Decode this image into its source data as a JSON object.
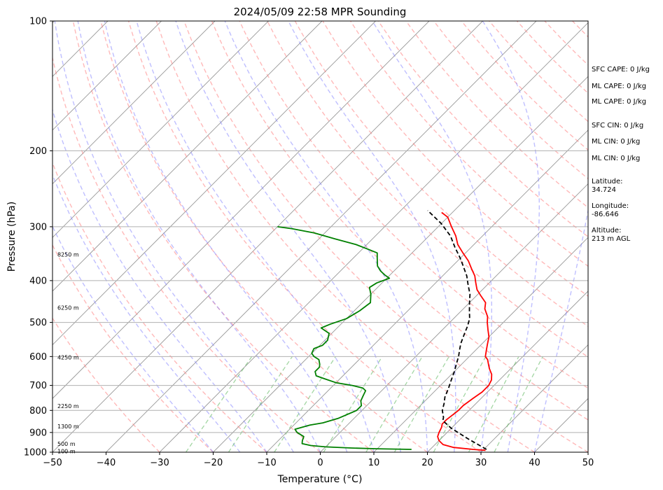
{
  "chart_data": {
    "type": "line",
    "title": "2024/05/09 22:58 MPR Sounding",
    "xlabel": "Temperature (°C)",
    "ylabel": "Pressure (hPa)",
    "xlim": [
      -50,
      50
    ],
    "ylim": [
      1000,
      100
    ],
    "y_scale": "log",
    "x_ticks": [
      "−50",
      "−40",
      "−30",
      "−20",
      "−10",
      "0",
      "10",
      "20",
      "30",
      "40",
      "50"
    ],
    "y_ticks": [
      "100",
      "200",
      "300",
      "400",
      "500",
      "600",
      "700",
      "800",
      "900",
      "1000"
    ],
    "grid": true,
    "series": [
      {
        "color": "#ff0000",
        "points": [
          [
            30.5,
            990
          ],
          [
            28,
            985
          ],
          [
            24,
            975
          ],
          [
            21.5,
            960
          ],
          [
            20,
            940
          ],
          [
            19,
            920
          ],
          [
            18.5,
            900
          ],
          [
            18,
            875
          ],
          [
            17.5,
            860
          ],
          [
            17.5,
            840
          ],
          [
            18,
            800
          ],
          [
            18,
            780
          ],
          [
            18.5,
            750
          ],
          [
            19,
            725
          ],
          [
            19,
            700
          ],
          [
            18.5,
            680
          ],
          [
            17.5,
            660
          ],
          [
            16,
            640
          ],
          [
            15,
            625
          ],
          [
            14,
            610
          ],
          [
            13,
            600
          ],
          [
            12,
            580
          ],
          [
            11,
            560
          ],
          [
            10,
            540
          ],
          [
            8.5,
            520
          ],
          [
            7,
            500
          ],
          [
            6,
            485
          ],
          [
            4,
            465
          ],
          [
            3,
            450
          ],
          [
            1,
            435
          ],
          [
            -1,
            420
          ],
          [
            -2.5,
            405
          ],
          [
            -4,
            390
          ],
          [
            -6,
            375
          ],
          [
            -8,
            360
          ],
          [
            -10.5,
            345
          ],
          [
            -13,
            330
          ],
          [
            -15,
            315
          ],
          [
            -17.5,
            300
          ],
          [
            -20,
            285
          ],
          [
            -22,
            278
          ]
        ]
      },
      {
        "color": "#000000",
        "points": [
          [
            30.5,
            985
          ],
          [
            25,
            930
          ],
          [
            20,
            880
          ],
          [
            17,
            845
          ],
          [
            16.5,
            830
          ],
          [
            16,
            820
          ],
          [
            15,
            800
          ],
          [
            14,
            770
          ],
          [
            13,
            745
          ],
          [
            12,
            710
          ],
          [
            11,
            680
          ],
          [
            10,
            650
          ],
          [
            9,
            625
          ],
          [
            8,
            600
          ],
          [
            7,
            580
          ],
          [
            6,
            560
          ],
          [
            5,
            535
          ],
          [
            4,
            510
          ],
          [
            3,
            490
          ],
          [
            1.5,
            470
          ],
          [
            0,
            450
          ],
          [
            -1.5,
            430
          ],
          [
            -3.5,
            410
          ],
          [
            -5.5,
            390
          ],
          [
            -8,
            370
          ],
          [
            -10,
            355
          ],
          [
            -13,
            335
          ],
          [
            -16,
            315
          ],
          [
            -20,
            295
          ],
          [
            -25,
            275
          ]
        ]
      },
      {
        "color": "#008000",
        "points": [
          [
            16.5,
            985
          ],
          [
            10,
            982
          ],
          [
            5,
            978
          ],
          [
            0,
            972
          ],
          [
            -3,
            965
          ],
          [
            -5,
            955
          ],
          [
            -5.5,
            940
          ],
          [
            -6,
            920
          ],
          [
            -8,
            900
          ],
          [
            -9,
            885
          ],
          [
            -8,
            875
          ],
          [
            -7,
            865
          ],
          [
            -5,
            855
          ],
          [
            -3,
            835
          ],
          [
            -1,
            800
          ],
          [
            -1,
            780
          ],
          [
            -2,
            760
          ],
          [
            -2.5,
            740
          ],
          [
            -3,
            720
          ],
          [
            -4,
            710
          ],
          [
            -6.5,
            700
          ],
          [
            -10,
            690
          ],
          [
            -13,
            675
          ],
          [
            -15,
            665
          ],
          [
            -16,
            650
          ],
          [
            -16,
            635
          ],
          [
            -16.5,
            625
          ],
          [
            -17.5,
            610
          ],
          [
            -19,
            600
          ],
          [
            -20,
            590
          ],
          [
            -20.5,
            575
          ],
          [
            -19.5,
            565
          ],
          [
            -19.5,
            550
          ],
          [
            -20.5,
            530
          ],
          [
            -23,
            515
          ],
          [
            -22,
            505
          ],
          [
            -20,
            490
          ],
          [
            -19,
            470
          ],
          [
            -18.5,
            450
          ],
          [
            -20,
            430
          ],
          [
            -21.5,
            415
          ],
          [
            -21,
            405
          ],
          [
            -19.5,
            395
          ],
          [
            -21,
            388
          ],
          [
            -22.5,
            380
          ],
          [
            -24,
            370
          ],
          [
            -25.5,
            355
          ],
          [
            -26.5,
            345
          ],
          [
            -29,
            338
          ],
          [
            -32,
            330
          ],
          [
            -37,
            320
          ],
          [
            -42,
            310
          ],
          [
            -47,
            303
          ],
          [
            -50,
            300
          ]
        ]
      }
    ],
    "heights": [
      "100 m",
      "500 m",
      "1300 m",
      "2250 m",
      "4250 m",
      "6250 m",
      "8250 m"
    ],
    "indices": [
      "SFC CAPE: 0 J/kg",
      "ML CAPE: 0 J/kg",
      "ML CAPE: 0 J/kg",
      "SFC CIN: 0 J/kg",
      "ML CIN: 0 J/kg",
      "ML CIN: 0 J/kg"
    ],
    "location": {
      "latitude_label": "Latitude:",
      "latitude": "34.724",
      "longitude_label": "Longitude:",
      "longitude": "-86.646",
      "altitude_label": "Altitude:",
      "altitude": "213 m AGL"
    },
    "colors": {
      "temperature": "#ff0000",
      "parcel": "#000000",
      "dewpoint": "#008000",
      "dry_adiabat": "#ff8080",
      "moist_adiabat": "#8080ff",
      "mixing_ratio": "#66bb66",
      "isotherm": "#999999"
    }
  }
}
